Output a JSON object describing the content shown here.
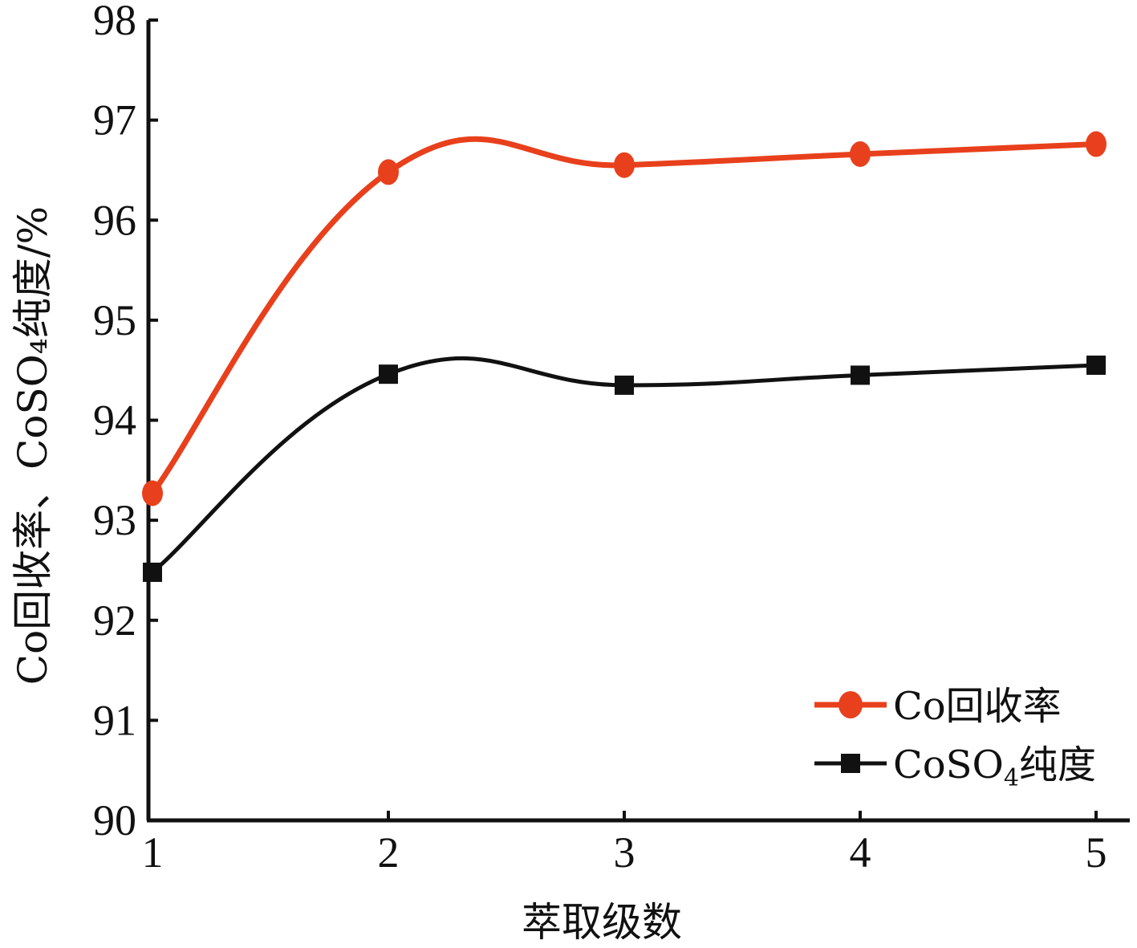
{
  "chart_data": {
    "type": "line",
    "title": "",
    "xlabel": "萃取级数",
    "ylabel": "Co回收率、CoSO₄纯度/%",
    "x": [
      1,
      2,
      3,
      4,
      5
    ],
    "x_ticks": [
      "1",
      "2",
      "3",
      "4",
      "5"
    ],
    "y_ticks": [
      "90",
      "91",
      "92",
      "93",
      "94",
      "95",
      "96",
      "97",
      "98"
    ],
    "ylim": [
      90,
      98
    ],
    "xlim": [
      1,
      5
    ],
    "grid": false,
    "legend_position": "bottom-right",
    "series": [
      {
        "name": "Co回收率",
        "values": [
          93.27,
          96.48,
          96.55,
          96.66,
          96.76
        ],
        "color": "#e8401c",
        "marker": "circle",
        "smooth": true
      },
      {
        "name": "CoSO4纯度",
        "name_parts": {
          "base": "CoSO",
          "sub": "4",
          "suffix": "纯度"
        },
        "values": [
          92.48,
          94.46,
          94.35,
          94.45,
          94.55
        ],
        "color": "#111111",
        "marker": "square",
        "smooth": true
      }
    ]
  }
}
